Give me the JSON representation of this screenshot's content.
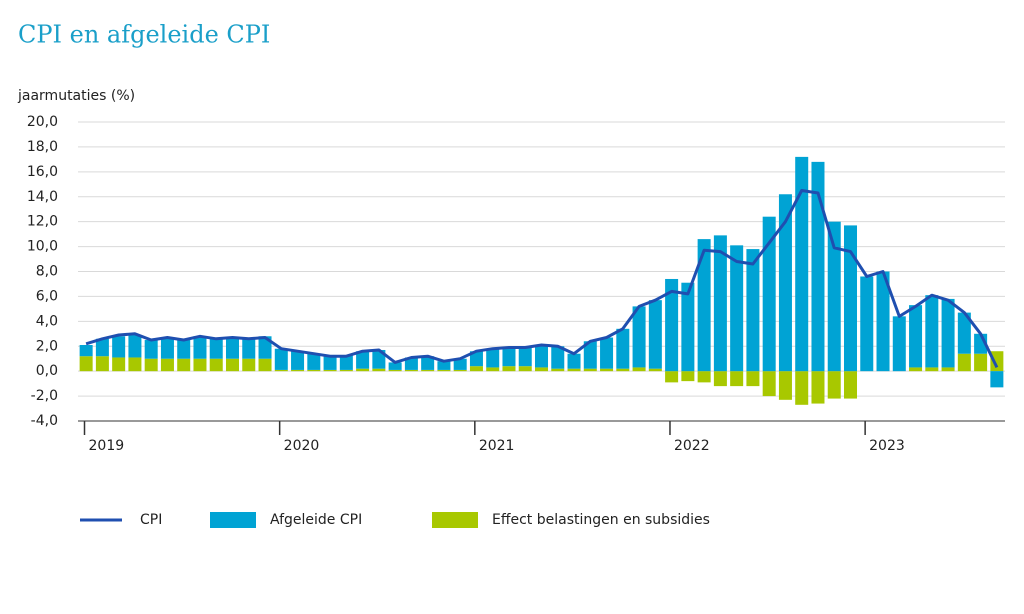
{
  "chart_data": {
    "type": "bar",
    "title": "CPI en afgeleide CPI",
    "y_label": "jaarmutaties (%)",
    "categories": [
      "2019",
      null,
      null,
      null,
      null,
      null,
      null,
      null,
      null,
      null,
      null,
      null,
      "2020",
      null,
      null,
      null,
      null,
      null,
      null,
      null,
      null,
      null,
      null,
      null,
      "2021",
      null,
      null,
      null,
      null,
      null,
      null,
      null,
      null,
      null,
      null,
      null,
      "2022",
      null,
      null,
      null,
      null,
      null,
      null,
      null,
      null,
      null,
      null,
      null,
      "2023",
      null,
      null,
      null,
      null,
      null,
      null,
      null,
      null
    ],
    "series": [
      {
        "name": "CPI",
        "type": "line",
        "color": "#1f4fb0",
        "values": [
          2.2,
          2.6,
          2.9,
          3.0,
          2.5,
          2.7,
          2.5,
          2.8,
          2.6,
          2.7,
          2.6,
          2.7,
          1.8,
          1.6,
          1.4,
          1.2,
          1.2,
          1.6,
          1.7,
          0.7,
          1.1,
          1.2,
          0.8,
          1.0,
          1.6,
          1.8,
          1.9,
          1.9,
          2.1,
          2.0,
          1.4,
          2.4,
          2.7,
          3.4,
          5.2,
          5.7,
          6.4,
          6.2,
          9.7,
          9.6,
          8.8,
          8.6,
          10.3,
          12.0,
          14.5,
          14.3,
          9.9,
          9.6,
          7.6,
          8.0,
          4.4,
          5.2,
          6.1,
          5.7,
          4.7,
          3.0,
          0.3
        ]
      },
      {
        "name": "Afgeleide CPI",
        "type": "bar",
        "color": "#00a3d4",
        "values": [
          0.9,
          1.4,
          1.7,
          1.8,
          1.5,
          1.7,
          1.5,
          1.8,
          1.6,
          1.7,
          1.6,
          1.8,
          1.7,
          1.5,
          1.3,
          1.2,
          1.2,
          1.4,
          1.5,
          0.6,
          1.0,
          1.1,
          0.7,
          0.9,
          1.2,
          1.5,
          1.5,
          1.5,
          1.8,
          1.8,
          1.2,
          2.2,
          2.5,
          3.2,
          4.9,
          5.5,
          7.4,
          7.1,
          10.6,
          10.9,
          10.1,
          9.8,
          12.4,
          14.2,
          17.2,
          16.8,
          12.0,
          11.7,
          7.6,
          8.0,
          4.4,
          5.0,
          5.8,
          5.5,
          3.3,
          1.6,
          -1.3
        ]
      },
      {
        "name": "Effect belastingen en subsidies",
        "type": "bar",
        "color": "#a8c800",
        "values": [
          1.2,
          1.2,
          1.1,
          1.1,
          1.0,
          1.0,
          1.0,
          1.0,
          1.0,
          1.0,
          1.0,
          1.0,
          0.1,
          0.1,
          0.1,
          0.1,
          0.1,
          0.2,
          0.2,
          0.1,
          0.1,
          0.1,
          0.1,
          0.1,
          0.4,
          0.3,
          0.4,
          0.4,
          0.3,
          0.2,
          0.2,
          0.2,
          0.2,
          0.2,
          0.3,
          0.2,
          -0.9,
          -0.8,
          -0.9,
          -1.2,
          -1.2,
          -1.2,
          -2.0,
          -2.3,
          -2.7,
          -2.6,
          -2.2,
          -2.2,
          0.0,
          0.0,
          0.0,
          0.3,
          0.3,
          0.3,
          1.4,
          1.4,
          1.6
        ]
      }
    ],
    "ylim": [
      -4,
      20
    ],
    "yticks": [
      {
        "value": -4,
        "label": "-4,0"
      },
      {
        "value": -2,
        "label": "-2,0"
      },
      {
        "value": 0,
        "label": "0,0"
      },
      {
        "value": 2,
        "label": "2,0"
      },
      {
        "value": 4,
        "label": "4,0"
      },
      {
        "value": 6,
        "label": "6,0"
      },
      {
        "value": 8,
        "label": "8,0"
      },
      {
        "value": 10,
        "label": "10,0"
      },
      {
        "value": 12,
        "label": "12,0"
      },
      {
        "value": 14,
        "label": "14,0"
      },
      {
        "value": 16,
        "label": "16,0"
      },
      {
        "value": 18,
        "label": "18,0"
      },
      {
        "value": 20,
        "label": "20,0"
      }
    ],
    "grid": true,
    "legend": "bottom"
  }
}
